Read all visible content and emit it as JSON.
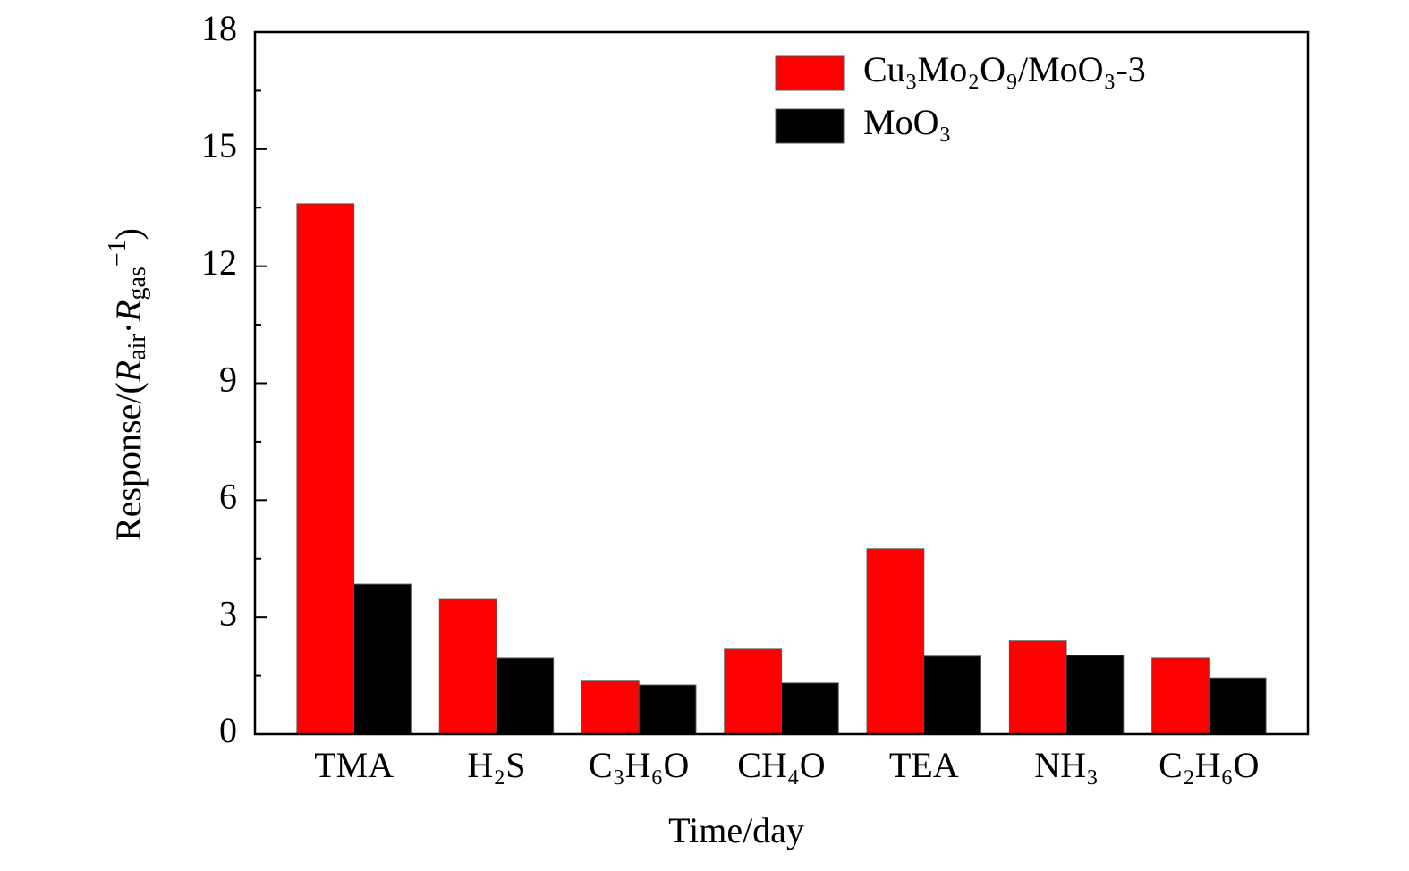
{
  "chart_data": {
    "type": "bar",
    "x_label": "Time/day",
    "y_label": [
      {
        "text": "Response/(",
        "style": "normal"
      },
      {
        "text": "R",
        "style": "italic"
      },
      {
        "text": "air",
        "style": "sub"
      },
      {
        "text": "·",
        "style": "normal"
      },
      {
        "text": "R",
        "style": "italic"
      },
      {
        "text": "gas",
        "style": "sub"
      },
      {
        "text": "−1",
        "style": "sup"
      },
      {
        "text": ")",
        "style": "normal"
      }
    ],
    "categories": [
      "TMA",
      "H₂S",
      "C₃H₆O",
      "CH₄O",
      "TEA",
      "NH₃",
      "C₂H₆O"
    ],
    "series": [
      {
        "name": "Cu₃Mo₂O₉/MoO₃-3",
        "color": "#ff0000",
        "values": [
          13.6,
          3.46,
          1.38,
          2.18,
          4.75,
          2.39,
          1.95
        ]
      },
      {
        "name": "MoO₃",
        "color": "#000000",
        "values": [
          3.85,
          1.95,
          1.26,
          1.31,
          2.0,
          2.02,
          1.44
        ]
      }
    ],
    "ylim": [
      0,
      18
    ],
    "yticks": [
      0,
      3,
      6,
      9,
      12,
      15,
      18
    ],
    "legend": "upper right"
  }
}
